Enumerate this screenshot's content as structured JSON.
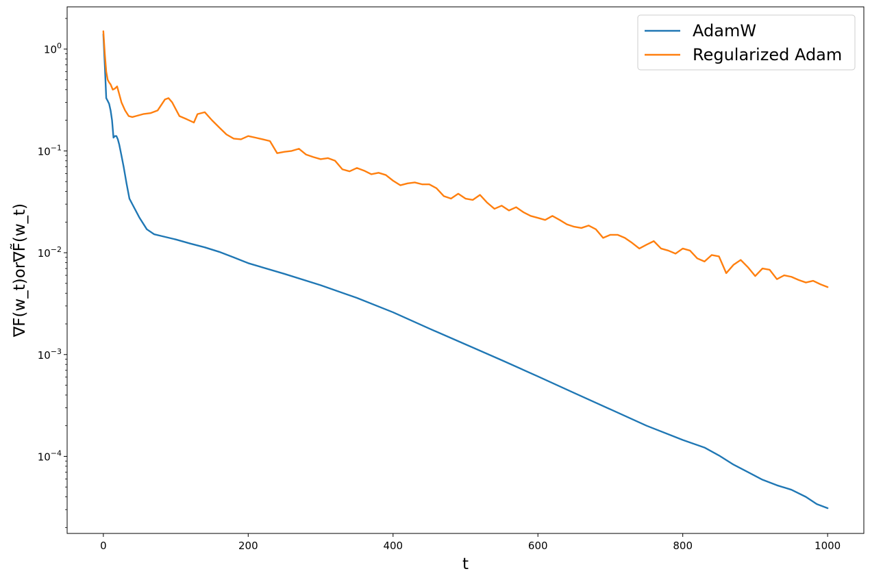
{
  "chart_data": {
    "type": "line",
    "xlabel": "t",
    "ylabel": "∇F(w_t)or∇F̃(w_t)",
    "yscale": "log",
    "xlim": [
      -50,
      1050
    ],
    "ylim": [
      1.75e-05,
      2.6
    ],
    "x_ticks": [
      {
        "value": 0,
        "label": "0"
      },
      {
        "value": 200,
        "label": "200"
      },
      {
        "value": 400,
        "label": "400"
      },
      {
        "value": 600,
        "label": "600"
      },
      {
        "value": 800,
        "label": "800"
      },
      {
        "value": 1000,
        "label": "1000"
      }
    ],
    "y_ticks": [
      {
        "value": 1,
        "base": "10",
        "exp": "0"
      },
      {
        "value": 0.1,
        "base": "10",
        "exp": "−1"
      },
      {
        "value": 0.01,
        "base": "10",
        "exp": "−2"
      },
      {
        "value": 0.001,
        "base": "10",
        "exp": "−3"
      },
      {
        "value": 0.0001,
        "base": "10",
        "exp": "−4"
      }
    ],
    "grid": false,
    "legend_position": "top-right",
    "series": [
      {
        "name": "AdamW",
        "color": "#1f77b4",
        "x": [
          0,
          2,
          4,
          6,
          8,
          10,
          12,
          14,
          16,
          18,
          20,
          22,
          25,
          28,
          32,
          36,
          40,
          50,
          60,
          70,
          80,
          100,
          120,
          140,
          160,
          180,
          200,
          250,
          300,
          350,
          400,
          450,
          500,
          550,
          600,
          650,
          700,
          750,
          800,
          830,
          850,
          870,
          890,
          910,
          930,
          950,
          970,
          985,
          1000
        ],
        "y": [
          1.4,
          0.7,
          0.33,
          0.31,
          0.29,
          0.25,
          0.2,
          0.135,
          0.14,
          0.14,
          0.13,
          0.115,
          0.09,
          0.07,
          0.048,
          0.034,
          0.03,
          0.022,
          0.017,
          0.0152,
          0.0146,
          0.0135,
          0.0123,
          0.0113,
          0.0102,
          0.009,
          0.0079,
          0.0062,
          0.0048,
          0.0036,
          0.0026,
          0.0018,
          0.00126,
          0.00088,
          0.00061,
          0.00042,
          0.00029,
          0.0002,
          0.000145,
          0.000122,
          0.000102,
          8.3e-05,
          7e-05,
          5.9e-05,
          5.2e-05,
          4.7e-05,
          4e-05,
          3.4e-05,
          3.1e-05
        ]
      },
      {
        "name": "Regularized Adam",
        "color": "#ff7f0e",
        "x": [
          0,
          2,
          4,
          6,
          8,
          10,
          13,
          16,
          19,
          22,
          25,
          30,
          35,
          40,
          45,
          55,
          65,
          75,
          85,
          90,
          95,
          105,
          115,
          125,
          130,
          140,
          150,
          160,
          170,
          180,
          190,
          200,
          210,
          220,
          230,
          240,
          250,
          260,
          270,
          280,
          290,
          300,
          310,
          320,
          330,
          340,
          350,
          360,
          370,
          380,
          390,
          400,
          410,
          420,
          430,
          440,
          450,
          460,
          470,
          480,
          490,
          500,
          510,
          520,
          530,
          540,
          550,
          560,
          570,
          580,
          590,
          600,
          610,
          620,
          630,
          640,
          650,
          660,
          670,
          680,
          690,
          700,
          710,
          720,
          730,
          740,
          750,
          760,
          770,
          780,
          790,
          800,
          810,
          820,
          830,
          840,
          850,
          860,
          870,
          880,
          890,
          900,
          910,
          920,
          930,
          940,
          950,
          960,
          970,
          980,
          990,
          1000
        ],
        "y": [
          1.5,
          0.9,
          0.6,
          0.5,
          0.47,
          0.45,
          0.4,
          0.41,
          0.43,
          0.36,
          0.3,
          0.25,
          0.22,
          0.215,
          0.22,
          0.23,
          0.235,
          0.25,
          0.32,
          0.33,
          0.3,
          0.22,
          0.205,
          0.19,
          0.23,
          0.24,
          0.2,
          0.17,
          0.145,
          0.132,
          0.13,
          0.14,
          0.135,
          0.13,
          0.125,
          0.095,
          0.098,
          0.1,
          0.105,
          0.092,
          0.087,
          0.083,
          0.085,
          0.08,
          0.066,
          0.063,
          0.068,
          0.064,
          0.059,
          0.061,
          0.058,
          0.051,
          0.046,
          0.048,
          0.049,
          0.047,
          0.047,
          0.043,
          0.036,
          0.034,
          0.038,
          0.034,
          0.033,
          0.037,
          0.031,
          0.027,
          0.029,
          0.026,
          0.028,
          0.025,
          0.023,
          0.022,
          0.021,
          0.023,
          0.021,
          0.019,
          0.018,
          0.0175,
          0.0185,
          0.017,
          0.014,
          0.015,
          0.015,
          0.014,
          0.0125,
          0.011,
          0.012,
          0.013,
          0.011,
          0.0105,
          0.0098,
          0.011,
          0.0105,
          0.0088,
          0.0082,
          0.0095,
          0.0092,
          0.0063,
          0.0076,
          0.0085,
          0.0072,
          0.0059,
          0.007,
          0.0068,
          0.0055,
          0.006,
          0.0058,
          0.0054,
          0.0051,
          0.0053,
          0.0049,
          0.0046
        ]
      }
    ]
  }
}
